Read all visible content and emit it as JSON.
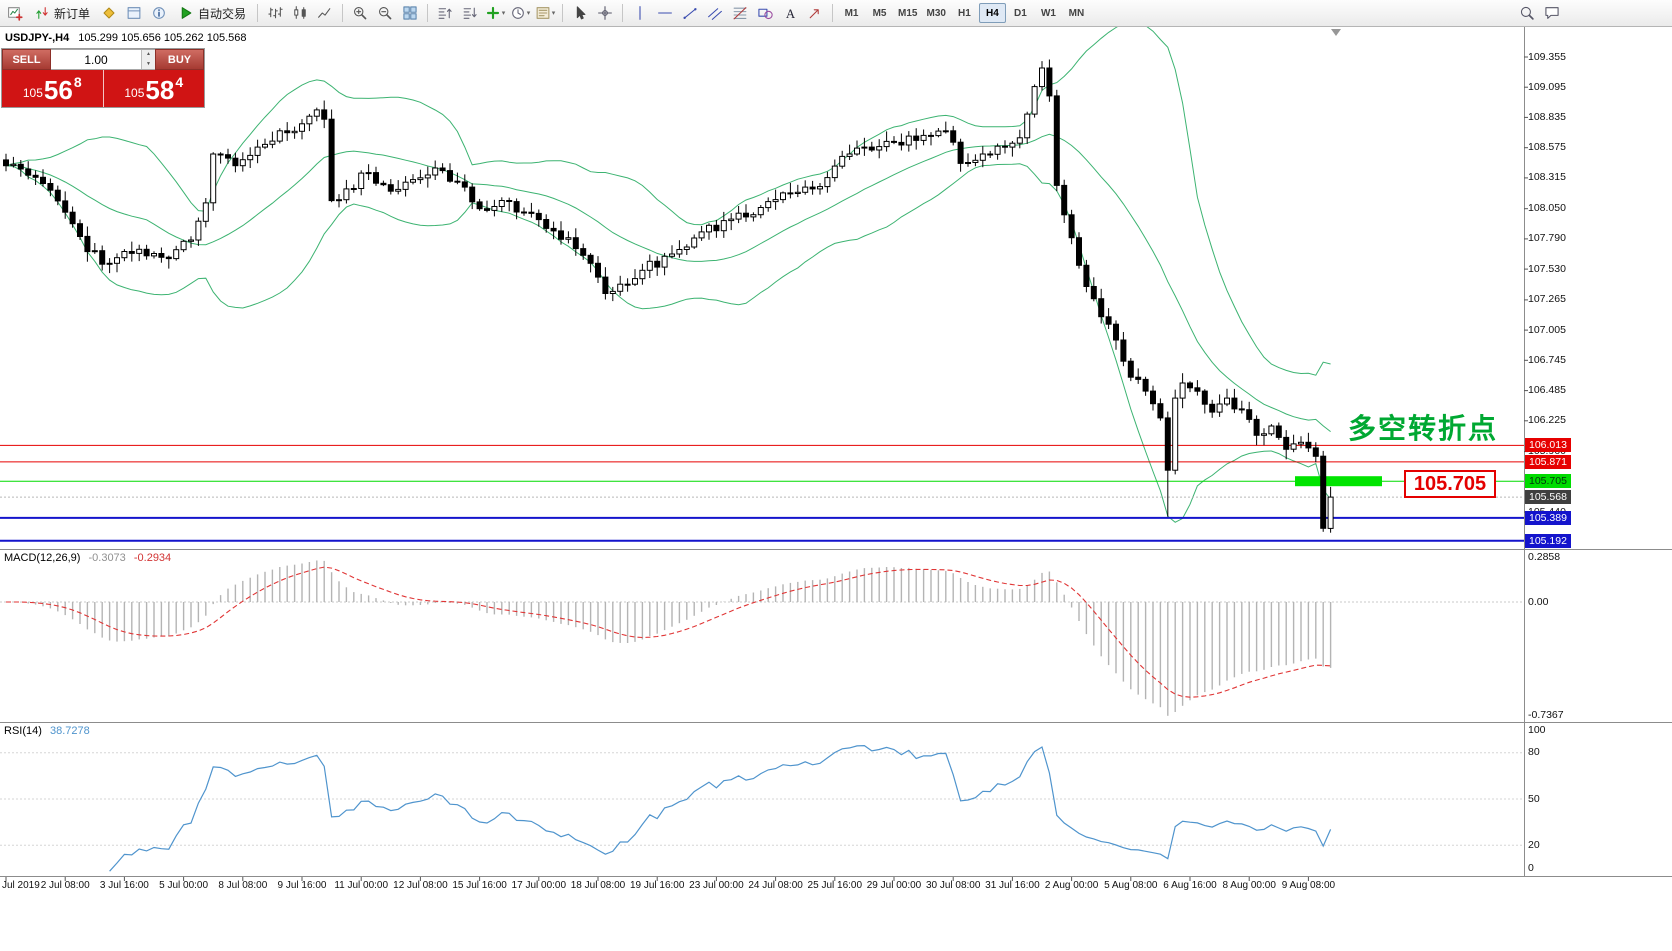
{
  "toolbar": {
    "new_order_label": "新订单",
    "autotrading_label": "自动交易",
    "timeframes": [
      "M1",
      "M5",
      "M15",
      "M30",
      "H1",
      "H4",
      "D1",
      "W1",
      "MN"
    ],
    "active_timeframe": "H4",
    "items": [
      {
        "t": "icon",
        "name": "new-chart-icon"
      },
      {
        "t": "btn",
        "name": "new-order-button",
        "icon": "order-icon",
        "label": "新订单"
      },
      {
        "t": "icon",
        "name": "market-watch-icon"
      },
      {
        "t": "icon",
        "name": "data-window-icon"
      },
      {
        "t": "icon",
        "name": "navigator-icon"
      },
      {
        "t": "btn",
        "name": "autotrading-button",
        "icon": "autotrading-icon",
        "label": "自动交易"
      },
      {
        "t": "sep"
      },
      {
        "t": "icon",
        "name": "bar-chart-icon"
      },
      {
        "t": "icon",
        "name": "candlestick-chart-icon"
      },
      {
        "t": "icon",
        "name": "line-chart-icon"
      },
      {
        "t": "sep"
      },
      {
        "t": "icon",
        "name": "zoom-in-icon"
      },
      {
        "t": "icon",
        "name": "zoom-out-icon"
      },
      {
        "t": "icon",
        "name": "tile-windows-icon"
      },
      {
        "t": "sep"
      },
      {
        "t": "icon",
        "name": "arrange-asc-icon"
      },
      {
        "t": "icon",
        "name": "arrange-desc-icon"
      },
      {
        "t": "icon",
        "name": "indicators-icon",
        "caret": true
      },
      {
        "t": "icon",
        "name": "periods-icon",
        "caret": true
      },
      {
        "t": "icon",
        "name": "templates-icon",
        "caret": true
      },
      {
        "t": "sep"
      },
      {
        "t": "icon",
        "name": "cursor-icon"
      },
      {
        "t": "icon",
        "name": "crosshair-icon"
      },
      {
        "t": "sep"
      },
      {
        "t": "icon",
        "name": "vertical-line-icon"
      },
      {
        "t": "icon",
        "name": "horizontal-line-icon"
      },
      {
        "t": "icon",
        "name": "trendline-icon"
      },
      {
        "t": "icon",
        "name": "channel-icon"
      },
      {
        "t": "icon",
        "name": "fibonacci-icon"
      },
      {
        "t": "icon",
        "name": "shapes-icon"
      },
      {
        "t": "icon",
        "name": "text-icon"
      },
      {
        "t": "icon",
        "name": "arrow-tool-icon"
      },
      {
        "t": "sep"
      },
      {
        "t": "tfs"
      },
      {
        "t": "spacer"
      },
      {
        "t": "icon",
        "name": "search-icon"
      },
      {
        "t": "icon",
        "name": "chat-icon"
      },
      {
        "t": "rightpad"
      }
    ]
  },
  "chart_header": {
    "symbol_period": "USDJPY-,H4",
    "ohlc": "105.299 105.656 105.262 105.568"
  },
  "trade_panel": {
    "sell_label": "SELL",
    "buy_label": "BUY",
    "volume": "1.00",
    "sell_price": {
      "prefix": "105",
      "big": "56",
      "sup": "8"
    },
    "buy_price": {
      "prefix": "105",
      "big": "58",
      "sup": "4"
    }
  },
  "annotations": {
    "turning_point": "多空转折点",
    "price_tag": "105.705"
  },
  "price_axis": {
    "grid_labels": [
      "109.355",
      "109.095",
      "108.835",
      "108.575",
      "108.315",
      "108.050",
      "107.790",
      "107.530",
      "107.265",
      "107.005",
      "106.745",
      "106.485",
      "106.225",
      "105.960",
      "105.440"
    ],
    "line_labels": [
      {
        "text": "106.013",
        "price": 106.013,
        "bg": "#e60000",
        "fg": "#ffffff"
      },
      {
        "text": "105.871",
        "price": 105.871,
        "bg": "#e60000",
        "fg": "#ffffff"
      },
      {
        "text": "105.705",
        "price": 105.705,
        "bg": "#00dc00",
        "fg": "#00330d"
      },
      {
        "text": "105.568",
        "price": 105.568,
        "bg": "#3f3f3f",
        "fg": "#ffffff"
      },
      {
        "text": "105.389",
        "price": 105.389,
        "bg": "#1414cc",
        "fg": "#ffffff"
      },
      {
        "text": "105.192",
        "price": 105.192,
        "bg": "#1414cc",
        "fg": "#ffffff"
      }
    ]
  },
  "time_axis": {
    "labels": [
      "Jul 2019",
      "2 Jul 08:00",
      "3 Jul 16:00",
      "5 Jul 00:00",
      "8 Jul 08:00",
      "9 Jul 16:00",
      "11 Jul 00:00",
      "12 Jul 08:00",
      "15 Jul 16:00",
      "17 Jul 00:00",
      "18 Jul 08:00",
      "19 Jul 16:00",
      "23 Jul 00:00",
      "24 Jul 08:00",
      "25 Jul 16:00",
      "29 Jul 00:00",
      "30 Jul 08:00",
      "31 Jul 16:00",
      "2 Aug 00:00",
      "5 Aug 08:00",
      "6 Aug 16:00",
      "8 Aug 00:00",
      "9 Aug 08:00"
    ]
  },
  "macd": {
    "name": "MACD(12,26,9)",
    "value": "-0.3073",
    "signal": "-0.2934",
    "axis_labels": [
      "0.2858",
      "0.00",
      "-0.7367"
    ],
    "axis_values": [
      0.2858,
      0,
      -0.7367
    ]
  },
  "rsi": {
    "name": "RSI(14)",
    "value": "38.7278",
    "axis_values": [
      100,
      80,
      50,
      20,
      0
    ]
  },
  "chart_data": {
    "type": "candlestick",
    "symbol": "USDJPY-",
    "period": "H4",
    "bars": 180,
    "visible_price_range": [
      105.12,
      109.61
    ],
    "bollinger": {
      "period": 20,
      "deviation": 2,
      "color": "#3CB371"
    },
    "levels": [
      {
        "price": 106.013,
        "color": "#e60000",
        "width": 1
      },
      {
        "price": 105.871,
        "color": "#e60000",
        "width": 1
      },
      {
        "price": 105.705,
        "color": "#00dc00",
        "width": 1,
        "highlight_segment": true
      },
      {
        "price": 105.389,
        "color": "#1414cc",
        "width": 2
      },
      {
        "price": 105.192,
        "color": "#1414cc",
        "width": 2
      }
    ],
    "bid": 105.568,
    "last_ohlc": {
      "open": 105.299,
      "high": 105.656,
      "low": 105.262,
      "close": 105.568
    },
    "keypoints": [
      [
        0,
        108.42
      ],
      [
        4,
        108.32
      ],
      [
        8,
        108.02
      ],
      [
        11,
        107.68
      ],
      [
        14,
        107.58
      ],
      [
        18,
        107.7
      ],
      [
        22,
        107.62
      ],
      [
        25,
        107.78
      ],
      [
        27,
        108.1
      ],
      [
        28,
        108.52
      ],
      [
        31,
        108.42
      ],
      [
        34,
        108.58
      ],
      [
        37,
        108.72
      ],
      [
        40,
        108.78
      ],
      [
        42,
        108.9
      ],
      [
        43,
        108.82
      ],
      [
        44,
        108.12
      ],
      [
        46,
        108.22
      ],
      [
        49,
        108.36
      ],
      [
        52,
        108.2
      ],
      [
        55,
        108.3
      ],
      [
        58,
        108.4
      ],
      [
        61,
        108.28
      ],
      [
        64,
        108.05
      ],
      [
        67,
        108.12
      ],
      [
        70,
        108.02
      ],
      [
        73,
        107.88
      ],
      [
        76,
        107.8
      ],
      [
        79,
        107.58
      ],
      [
        81,
        107.32
      ],
      [
        83,
        107.4
      ],
      [
        86,
        107.52
      ],
      [
        90,
        107.66
      ],
      [
        94,
        107.85
      ],
      [
        98,
        107.96
      ],
      [
        102,
        108.06
      ],
      [
        106,
        108.18
      ],
      [
        110,
        108.24
      ],
      [
        113,
        108.5
      ],
      [
        116,
        108.58
      ],
      [
        120,
        108.62
      ],
      [
        124,
        108.68
      ],
      [
        127,
        108.72
      ],
      [
        129,
        108.44
      ],
      [
        132,
        108.52
      ],
      [
        135,
        108.58
      ],
      [
        137,
        108.66
      ],
      [
        139,
        109.1
      ],
      [
        140,
        109.26
      ],
      [
        141,
        109.02
      ],
      [
        142,
        108.25
      ],
      [
        144,
        107.8
      ],
      [
        146,
        107.38
      ],
      [
        148,
        107.12
      ],
      [
        150,
        106.92
      ],
      [
        152,
        106.6
      ],
      [
        154,
        106.48
      ],
      [
        156,
        106.25
      ],
      [
        157,
        105.8
      ],
      [
        158,
        106.42
      ],
      [
        159,
        106.55
      ],
      [
        161,
        106.48
      ],
      [
        163,
        106.3
      ],
      [
        165,
        106.42
      ],
      [
        167,
        106.32
      ],
      [
        169,
        106.1
      ],
      [
        171,
        106.18
      ],
      [
        173,
        105.98
      ],
      [
        175,
        106.04
      ],
      [
        177,
        105.92
      ],
      [
        178,
        105.3
      ],
      [
        179,
        105.568
      ]
    ],
    "overrides": [
      {
        "bar": 140,
        "high": 109.32
      },
      {
        "bar": 157,
        "low": 105.4
      },
      {
        "bar": 178,
        "low": 105.27
      },
      {
        "bar": 179,
        "open": 105.299,
        "high": 105.656,
        "low": 105.262,
        "close": 105.568
      }
    ]
  }
}
